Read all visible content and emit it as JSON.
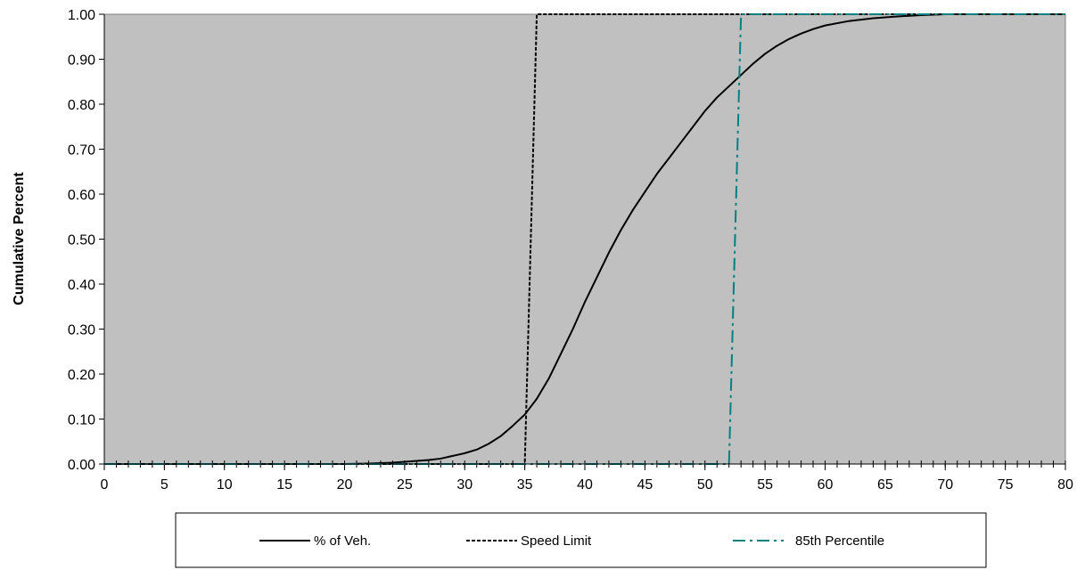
{
  "colors": {
    "plot_background": "#c0c0c0",
    "veh": "#000000",
    "speed_limit": "#000000",
    "percentile": "#008080"
  },
  "chart_data": {
    "type": "line",
    "title": "",
    "xlabel": "",
    "ylabel": "Cumulative Percent",
    "xlim": [
      0,
      80
    ],
    "ylim": [
      0,
      1
    ],
    "x_ticks": [
      "0",
      "5",
      "10",
      "15",
      "20",
      "25",
      "30",
      "35",
      "40",
      "45",
      "50",
      "55",
      "60",
      "65",
      "70",
      "75",
      "80"
    ],
    "y_ticks": [
      "0.00",
      "0.10",
      "0.20",
      "0.30",
      "0.40",
      "0.50",
      "0.60",
      "0.70",
      "0.80",
      "0.90",
      "1.00"
    ],
    "grid": false,
    "legend_position": "bottom",
    "series": [
      {
        "name": "% of Veh.",
        "style": "solid",
        "points": [
          [
            0,
            0
          ],
          [
            20,
            0
          ],
          [
            22,
            0.001
          ],
          [
            24,
            0.003
          ],
          [
            25,
            0.005
          ],
          [
            26,
            0.007
          ],
          [
            27,
            0.009
          ],
          [
            28,
            0.012
          ],
          [
            29,
            0.018
          ],
          [
            30,
            0.024
          ],
          [
            31,
            0.032
          ],
          [
            32,
            0.045
          ],
          [
            33,
            0.062
          ],
          [
            34,
            0.085
          ],
          [
            35,
            0.11
          ],
          [
            36,
            0.145
          ],
          [
            37,
            0.19
          ],
          [
            38,
            0.245
          ],
          [
            39,
            0.3
          ],
          [
            40,
            0.36
          ],
          [
            41,
            0.415
          ],
          [
            42,
            0.47
          ],
          [
            43,
            0.52
          ],
          [
            44,
            0.565
          ],
          [
            45,
            0.605
          ],
          [
            46,
            0.645
          ],
          [
            47,
            0.68
          ],
          [
            48,
            0.715
          ],
          [
            49,
            0.75
          ],
          [
            50,
            0.785
          ],
          [
            51,
            0.815
          ],
          [
            52,
            0.84
          ],
          [
            53,
            0.865
          ],
          [
            54,
            0.89
          ],
          [
            55,
            0.912
          ],
          [
            56,
            0.93
          ],
          [
            57,
            0.945
          ],
          [
            58,
            0.957
          ],
          [
            59,
            0.967
          ],
          [
            60,
            0.975
          ],
          [
            62,
            0.985
          ],
          [
            64,
            0.991
          ],
          [
            66,
            0.995
          ],
          [
            68,
            0.998
          ],
          [
            70,
            1.0
          ],
          [
            80,
            1.0
          ]
        ]
      },
      {
        "name": "Speed Limit",
        "style": "dashed",
        "points": [
          [
            0,
            0
          ],
          [
            35,
            0
          ],
          [
            36,
            1.0
          ],
          [
            80,
            1.0
          ]
        ]
      },
      {
        "name": "85th Percentile",
        "style": "dashdot",
        "points": [
          [
            0,
            0
          ],
          [
            52,
            0
          ],
          [
            53,
            1.0
          ],
          [
            80,
            1.0
          ]
        ]
      }
    ]
  }
}
